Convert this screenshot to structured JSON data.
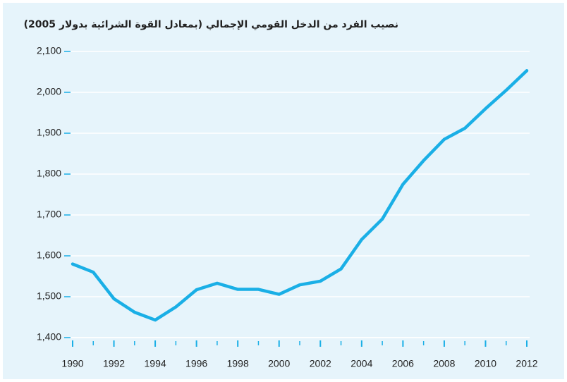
{
  "chart_data": {
    "type": "line",
    "title": "نصيب الفرد من الدخل القومي الإجمالي (بمعادل القوة الشرائية بدولار 2005)",
    "x": [
      1990,
      1991,
      1992,
      1993,
      1994,
      1995,
      1996,
      1997,
      1998,
      1999,
      2000,
      2001,
      2002,
      2003,
      2004,
      2005,
      2006,
      2007,
      2008,
      2009,
      2010,
      2011,
      2012
    ],
    "series": [
      {
        "color": "#1aafe6",
        "values": [
          1580,
          1560,
          1495,
          1462,
          1443,
          1475,
          1517,
          1533,
          1518,
          1518,
          1506,
          1529,
          1538,
          1568,
          1640,
          1690,
          1775,
          1833,
          1885,
          1912,
          1960,
          2005,
          2053
        ]
      }
    ],
    "xlim": [
      1990,
      2012
    ],
    "xticks": [
      1990,
      1992,
      1994,
      1996,
      1998,
      2000,
      2002,
      2004,
      2006,
      2008,
      2010,
      2012
    ],
    "ylim": [
      1400,
      2100
    ],
    "yticks": [
      {
        "value": 1400,
        "label": "1,400"
      },
      {
        "value": 1500,
        "label": "1,500"
      },
      {
        "value": 1600,
        "label": "1,600"
      },
      {
        "value": 1700,
        "label": "1,700"
      },
      {
        "value": 1800,
        "label": "1,800"
      },
      {
        "value": 1900,
        "label": "1,900"
      },
      {
        "value": 2000,
        "label": "2,000"
      },
      {
        "value": 2100,
        "label": "2,100"
      }
    ],
    "grid": true
  }
}
